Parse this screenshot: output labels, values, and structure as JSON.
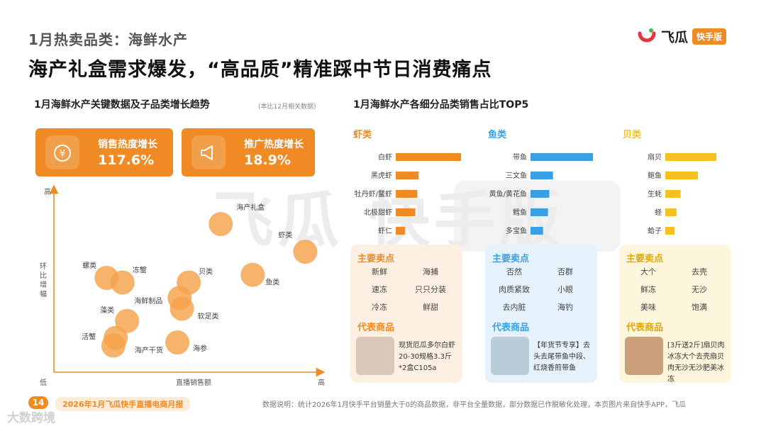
{
  "header": {
    "subtitle": "1月热卖品类：海鲜水产",
    "title": "海产礼盒需求爆发，“高品质”精准踩中节日消费痛点",
    "brand_name": "飞瓜",
    "brand_badge": "快手版"
  },
  "left_section": {
    "title": "1月海鲜水产关键数据及子品类增长趋势",
    "note": "(本比12月相关数据)",
    "kpis": [
      {
        "label": "销售热度增长",
        "value": "117.6%",
        "icon": "money-bag-icon"
      },
      {
        "label": "推广热度增长",
        "value": "18.9%",
        "icon": "megaphone-icon"
      }
    ]
  },
  "chart_data": [
    {
      "type": "scatter",
      "title": "",
      "xlabel": "直播销售额",
      "ylabel": "环比增幅",
      "x_low_label": "低",
      "x_high_label": "高",
      "y_low_label": "低",
      "y_high_label": "高",
      "xlim": [
        0,
        100
      ],
      "ylim": [
        0,
        100
      ],
      "grid": false,
      "points": [
        {
          "name": "海产礼盒",
          "x": 60,
          "y": 88
        },
        {
          "name": "虾类",
          "x": 97,
          "y": 70
        },
        {
          "name": "鱼类",
          "x": 74,
          "y": 55
        },
        {
          "name": "螺类",
          "x": 10,
          "y": 53
        },
        {
          "name": "冻蟹",
          "x": 17,
          "y": 50
        },
        {
          "name": "贝类",
          "x": 46,
          "y": 50
        },
        {
          "name": "海鲜制品",
          "x": 42,
          "y": 40
        },
        {
          "name": "软足类",
          "x": 43,
          "y": 33
        },
        {
          "name": "藻类",
          "x": 19,
          "y": 25
        },
        {
          "name": "活蟹",
          "x": 14,
          "y": 14
        },
        {
          "name": "海产干货",
          "x": 13,
          "y": 9
        },
        {
          "name": "海参",
          "x": 41,
          "y": 11
        }
      ],
      "color": "#f5a24b"
    },
    {
      "type": "bar",
      "title": "1月海鲜水产各细分品类销售占比TOP5",
      "groups": [
        {
          "name": "虾类",
          "color": "#f08a24",
          "categories": [
            "白虾",
            "黑虎虾",
            "牡丹虾/鳌虾",
            "北极甜虾",
            "虾仁"
          ],
          "values": [
            100,
            35,
            33,
            30,
            14
          ]
        },
        {
          "name": "鱼类",
          "color": "#3aa0e6",
          "categories": [
            "带鱼",
            "三文鱼",
            "黄鱼/黄花鱼",
            "鳕鱼",
            "多宝鱼"
          ],
          "values": [
            100,
            36,
            30,
            28,
            20
          ]
        },
        {
          "name": "贝类",
          "color": "#f5c020",
          "categories": [
            "扇贝",
            "鲍鱼",
            "生蚝",
            "蛏",
            "蛤子"
          ],
          "values": [
            100,
            64,
            30,
            22,
            18
          ]
        }
      ]
    }
  ],
  "panels": [
    {
      "title": "主要卖点",
      "bg": "#fdf0e3",
      "accent": "#f08a24",
      "points": [
        "新鲜",
        "海捕",
        "速冻",
        "只只分装",
        "冷冻",
        "鲜甜"
      ],
      "product_title": "代表商品",
      "product_text": "现货厄瓜多尔白虾20-30规格3.3斤*2盒C105a"
    },
    {
      "title": "主要卖点",
      "bg": "#e6f2fb",
      "accent": "#3aa0e6",
      "points": [
        "否然",
        "否群",
        "肉质紧致",
        "小眼",
        "去内脏",
        "海钓"
      ],
      "product_title": "代表商品",
      "product_text": "【年货节专享】去头去尾带鱼中段、红烧香煎带鱼"
    },
    {
      "title": "主要卖点",
      "bg": "#fdf5dc",
      "accent": "#e0a800",
      "points": [
        "大个",
        "去壳",
        "鲜冻",
        "无沙",
        "美味",
        "饱满"
      ],
      "product_title": "代表商品",
      "product_text": "[3斤送2斤]扇贝肉冰冻大个去壳扇贝肉无沙无沙肥美冰冻"
    }
  ],
  "footer": {
    "page": "14",
    "report": "2026年1月飞瓜快手直播电商月报",
    "note": "数据说明：统计2026年1月快手平台销量大于0的商品数据，非平台全量数据，部分数据已作脱敏化处理，本页图片来自快手APP，飞瓜",
    "corner_watermark": "大数跨境"
  },
  "watermark": "飞瓜  快手版"
}
